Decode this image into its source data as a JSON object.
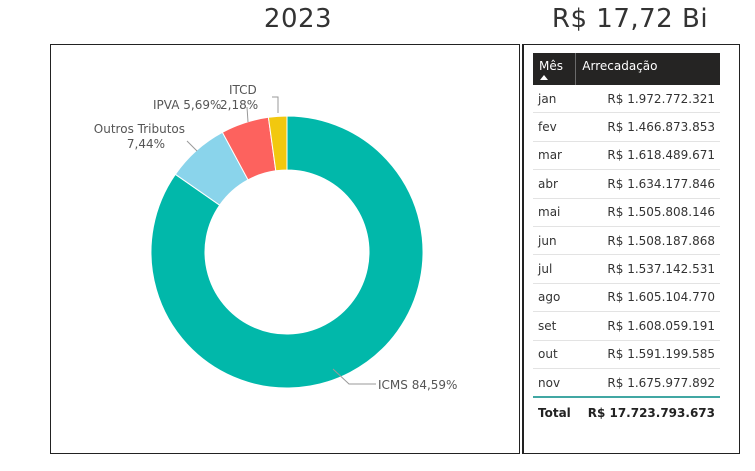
{
  "header": {
    "year": "2023",
    "total_short": "R$ 17,72 Bi"
  },
  "donut": {
    "segments": [
      {
        "name": "ICMS",
        "pct_label": "84,59%",
        "value": 84.59,
        "color": "#01B8AA"
      },
      {
        "name": "Outros Tributos",
        "pct_label": "7,44%",
        "value": 7.44,
        "color": "#8AD4EB"
      },
      {
        "name": "IPVA",
        "pct_label": "5,69%",
        "value": 5.69,
        "color": "#FD625E"
      },
      {
        "name": "ITCD",
        "pct_label": "2,18%",
        "value": 2.18,
        "color": "#F2C80F"
      }
    ],
    "labels": {
      "icms": "ICMS 84,59%",
      "outros_name": "Outros Tributos",
      "outros_pct": "7,44%",
      "ipva": "IPVA 5,69%",
      "itcd_name": "ITCD",
      "itcd_pct": "2,18%"
    }
  },
  "table": {
    "headers": {
      "month": "Mês",
      "value": "Arrecadação"
    },
    "rows": [
      {
        "month": "jan",
        "value": "R$ 1.972.772.321"
      },
      {
        "month": "fev",
        "value": "R$ 1.466.873.853"
      },
      {
        "month": "mar",
        "value": "R$ 1.618.489.671"
      },
      {
        "month": "abr",
        "value": "R$ 1.634.177.846"
      },
      {
        "month": "mai",
        "value": "R$ 1.505.808.146"
      },
      {
        "month": "jun",
        "value": "R$ 1.508.187.868"
      },
      {
        "month": "jul",
        "value": "R$ 1.537.142.531"
      },
      {
        "month": "ago",
        "value": "R$ 1.605.104.770"
      },
      {
        "month": "set",
        "value": "R$ 1.608.059.191"
      },
      {
        "month": "out",
        "value": "R$ 1.591.199.585"
      },
      {
        "month": "nov",
        "value": "R$ 1.675.977.892"
      }
    ],
    "total": {
      "label": "Total",
      "value": "R$ 17.723.793.673"
    }
  }
}
